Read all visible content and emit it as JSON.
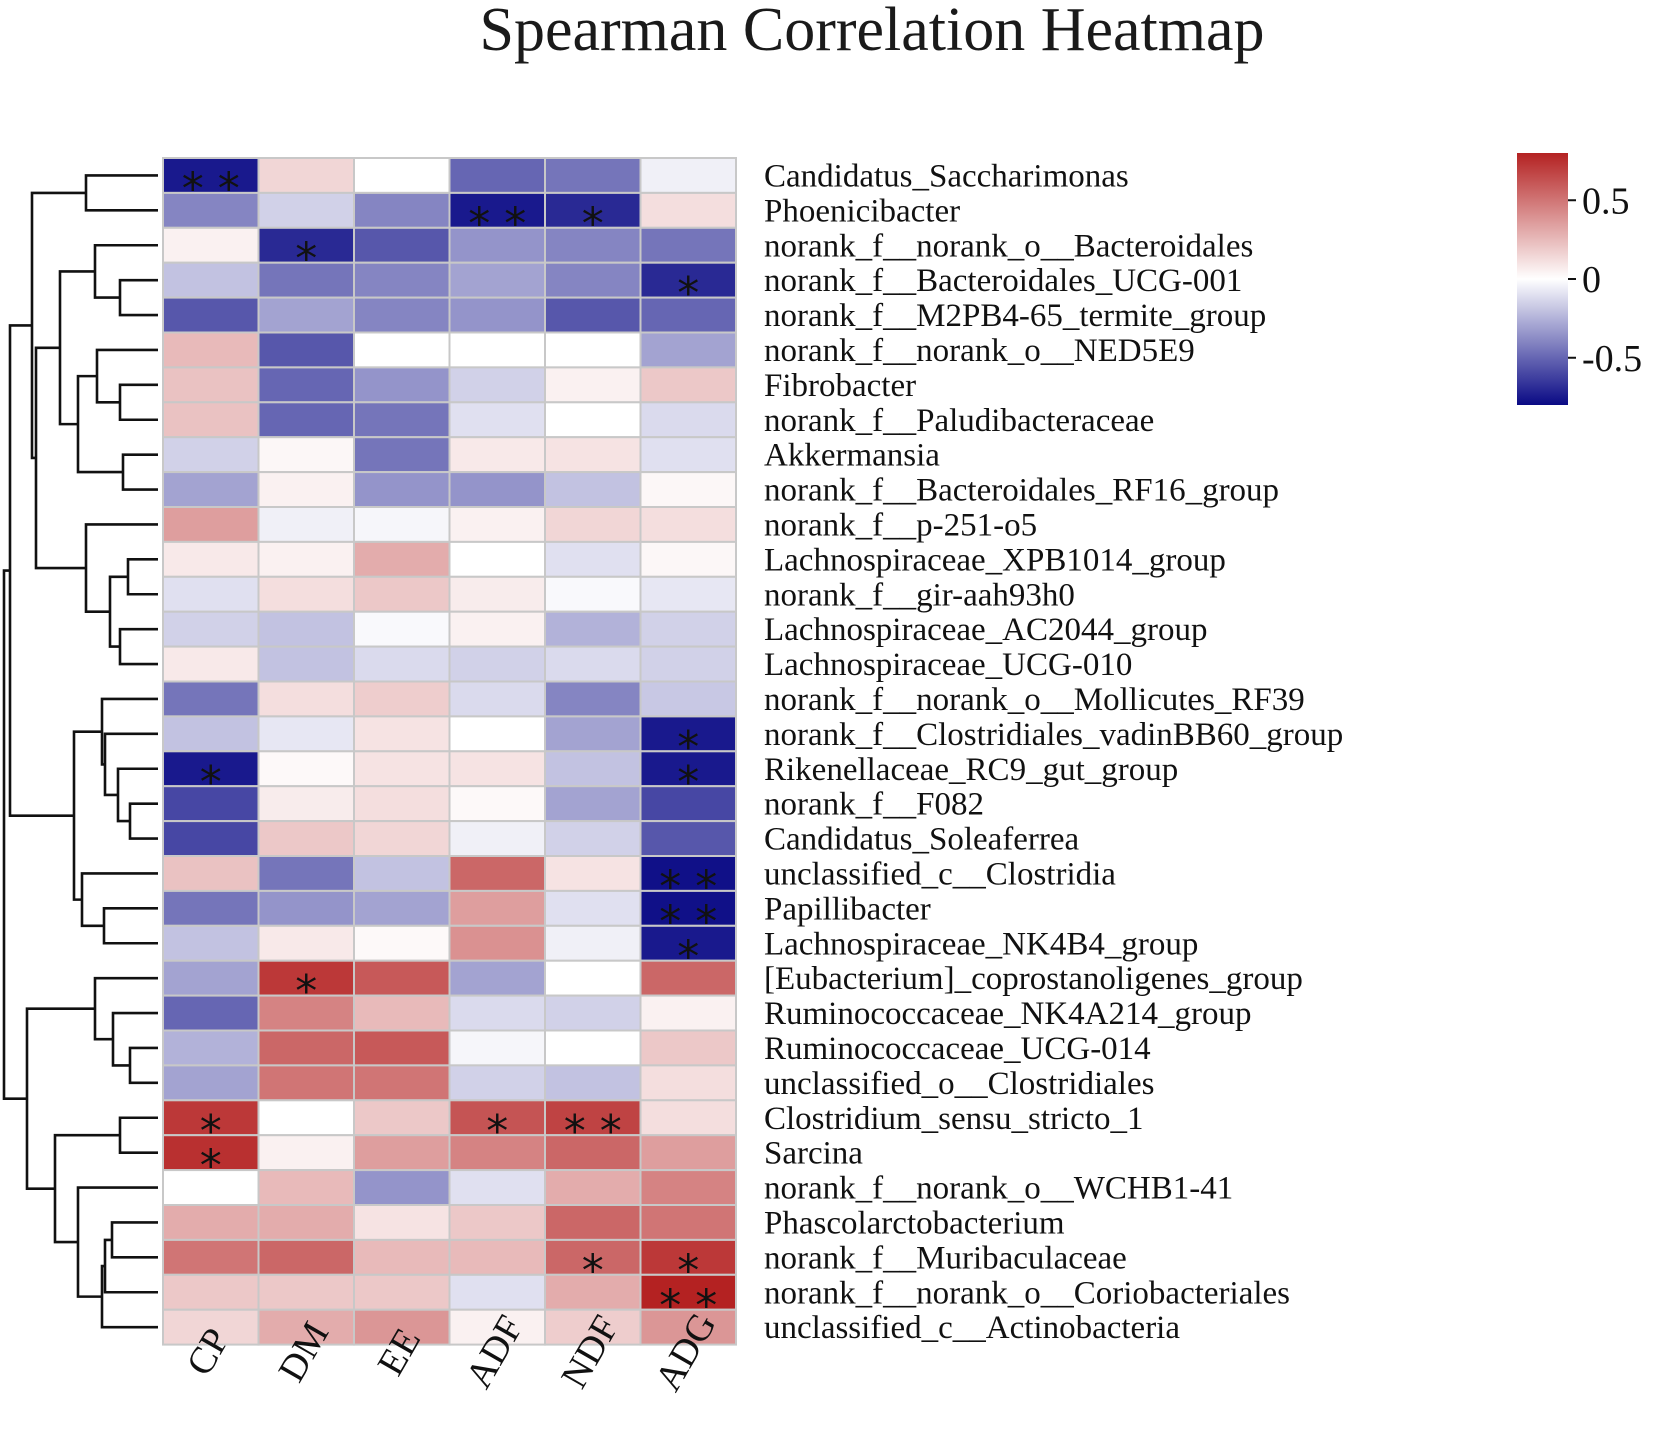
{
  "chart_data": {
    "type": "heatmap",
    "title": "Spearman Correlation Heatmap",
    "columns": [
      "CP",
      "DM",
      "EE",
      "ADF",
      "NDF",
      "ADG"
    ],
    "rows": [
      {
        "label": "Candidatus_Saccharimonas",
        "values": [
          -0.75,
          0.15,
          0.0,
          -0.5,
          -0.45,
          -0.05
        ],
        "stars": [
          "**",
          "",
          "",
          "",
          "",
          ""
        ]
      },
      {
        "label": "Phoenicibacter",
        "values": [
          -0.4,
          -0.15,
          -0.4,
          -0.75,
          -0.7,
          0.12
        ],
        "stars": [
          "",
          "",
          "",
          "**",
          "*",
          ""
        ]
      },
      {
        "label": "norank_f__norank_o__Bacteroidales",
        "values": [
          0.05,
          -0.7,
          -0.55,
          -0.35,
          -0.4,
          -0.45
        ],
        "stars": [
          "",
          "*",
          "",
          "",
          "",
          ""
        ]
      },
      {
        "label": "norank_f__Bacteroidales_UCG-001",
        "values": [
          -0.2,
          -0.45,
          -0.4,
          -0.3,
          -0.4,
          -0.7
        ],
        "stars": [
          "",
          "",
          "",
          "",
          "",
          "*"
        ]
      },
      {
        "label": "norank_f__M2PB4-65_termite_group",
        "values": [
          -0.55,
          -0.3,
          -0.4,
          -0.35,
          -0.55,
          -0.5
        ],
        "stars": [
          "",
          "",
          "",
          "",
          "",
          ""
        ]
      },
      {
        "label": "norank_f__norank_o__NED5E9",
        "values": [
          0.25,
          -0.55,
          0.0,
          0.0,
          0.0,
          -0.3
        ],
        "stars": [
          "",
          "",
          "",
          "",
          "",
          ""
        ]
      },
      {
        "label": "Fibrobacter",
        "values": [
          0.22,
          -0.5,
          -0.35,
          -0.15,
          0.05,
          0.2
        ],
        "stars": [
          "",
          "",
          "",
          "",
          "",
          ""
        ]
      },
      {
        "label": "norank_f__Paludibacteraceae",
        "values": [
          0.22,
          -0.5,
          -0.45,
          -0.1,
          0.0,
          -0.12
        ],
        "stars": [
          "",
          "",
          "",
          "",
          "",
          ""
        ]
      },
      {
        "label": "Akkermansia",
        "values": [
          -0.15,
          0.03,
          -0.45,
          0.08,
          0.1,
          -0.1
        ],
        "stars": [
          "",
          "",
          "",
          "",
          "",
          ""
        ]
      },
      {
        "label": "norank_f__Bacteroidales_RF16_group",
        "values": [
          -0.3,
          0.05,
          -0.35,
          -0.35,
          -0.2,
          0.03
        ],
        "stars": [
          "",
          "",
          "",
          "",
          "",
          ""
        ]
      },
      {
        "label": "norank_f__p-251-o5",
        "values": [
          0.35,
          -0.05,
          -0.03,
          0.05,
          0.15,
          0.12
        ],
        "stars": [
          "",
          "",
          "",
          "",
          "",
          ""
        ]
      },
      {
        "label": "Lachnospiraceae_XPB1014_group",
        "values": [
          0.08,
          0.05,
          0.3,
          0.0,
          -0.1,
          0.03
        ],
        "stars": [
          "",
          "",
          "",
          "",
          "",
          ""
        ]
      },
      {
        "label": "norank_f__gir-aah93h0",
        "values": [
          -0.1,
          0.12,
          0.2,
          0.07,
          -0.02,
          -0.08
        ],
        "stars": [
          "",
          "",
          "",
          "",
          "",
          ""
        ]
      },
      {
        "label": "Lachnospiraceae_AC2044_group",
        "values": [
          -0.15,
          -0.2,
          -0.02,
          0.05,
          -0.25,
          -0.15
        ],
        "stars": [
          "",
          "",
          "",
          "",
          "",
          ""
        ]
      },
      {
        "label": "Lachnospiraceae_UCG-010",
        "values": [
          0.08,
          -0.2,
          -0.12,
          -0.15,
          -0.12,
          -0.15
        ],
        "stars": [
          "",
          "",
          "",
          "",
          "",
          ""
        ]
      },
      {
        "label": "norank_f__norank_o__Mollicutes_RF39",
        "values": [
          -0.45,
          0.12,
          0.18,
          -0.12,
          -0.4,
          -0.18
        ],
        "stars": [
          "",
          "",
          "",
          "",
          "",
          ""
        ]
      },
      {
        "label": "norank_f__Clostridiales_vadinBB60_group",
        "values": [
          -0.2,
          -0.08,
          0.1,
          0.0,
          -0.3,
          -0.75
        ],
        "stars": [
          "",
          "",
          "",
          "",
          "",
          "*"
        ]
      },
      {
        "label": "Rikenellaceae_RC9_gut_group",
        "values": [
          -0.75,
          0.02,
          0.1,
          0.1,
          -0.2,
          -0.75
        ],
        "stars": [
          "*",
          "",
          "",
          "",
          "",
          "*"
        ]
      },
      {
        "label": "norank_f__F082",
        "values": [
          -0.6,
          0.07,
          0.12,
          0.02,
          -0.3,
          -0.6
        ],
        "stars": [
          "",
          "",
          "",
          "",
          "",
          ""
        ]
      },
      {
        "label": "Candidatus_Soleaferrea",
        "values": [
          -0.6,
          0.2,
          0.15,
          -0.05,
          -0.15,
          -0.55
        ],
        "stars": [
          "",
          "",
          "",
          "",
          "",
          ""
        ]
      },
      {
        "label": "unclassified_c__Clostridia",
        "values": [
          0.22,
          -0.45,
          -0.2,
          0.55,
          0.1,
          -0.78
        ],
        "stars": [
          "",
          "",
          "",
          "",
          "",
          "**"
        ]
      },
      {
        "label": "Papillibacter",
        "values": [
          -0.45,
          -0.35,
          -0.3,
          0.35,
          -0.1,
          -0.78
        ],
        "stars": [
          "",
          "",
          "",
          "",
          "",
          "**"
        ]
      },
      {
        "label": "Lachnospiraceae_NK4B4_group",
        "values": [
          -0.2,
          0.08,
          0.02,
          0.4,
          -0.05,
          -0.75
        ],
        "stars": [
          "",
          "",
          "",
          "",
          "",
          "*"
        ]
      },
      {
        "label": "[Eubacterium]_coprostanoligenes_group",
        "values": [
          -0.3,
          0.72,
          0.6,
          -0.3,
          0.0,
          0.55
        ],
        "stars": [
          "",
          "*",
          "",
          "",
          "",
          ""
        ]
      },
      {
        "label": "Ruminococcaceae_NK4A214_group",
        "values": [
          -0.5,
          0.45,
          0.25,
          -0.12,
          -0.15,
          0.05
        ],
        "stars": [
          "",
          "",
          "",
          "",
          "",
          ""
        ]
      },
      {
        "label": "Ruminococcaceae_UCG-014",
        "values": [
          -0.25,
          0.55,
          0.6,
          -0.03,
          0.0,
          0.2
        ],
        "stars": [
          "",
          "",
          "",
          "",
          "",
          ""
        ]
      },
      {
        "label": "unclassified_o__Clostridiales",
        "values": [
          -0.3,
          0.5,
          0.5,
          -0.15,
          -0.2,
          0.12
        ],
        "stars": [
          "",
          "",
          "",
          "",
          "",
          ""
        ]
      },
      {
        "label": "Clostridium_sensu_stricto_1",
        "values": [
          0.72,
          0.0,
          0.2,
          0.62,
          0.68,
          0.12
        ],
        "stars": [
          "*",
          "",
          "",
          "*",
          "**",
          ""
        ]
      },
      {
        "label": "Sarcina",
        "values": [
          0.75,
          0.05,
          0.35,
          0.45,
          0.55,
          0.35
        ],
        "stars": [
          "*",
          "",
          "",
          "",
          "",
          ""
        ]
      },
      {
        "label": "norank_f__norank_o__WCHB1-41",
        "values": [
          0.0,
          0.25,
          -0.35,
          -0.1,
          0.3,
          0.45
        ],
        "stars": [
          "",
          "",
          "",
          "",
          "",
          ""
        ]
      },
      {
        "label": "Phascolarctobacterium",
        "values": [
          0.3,
          0.3,
          0.1,
          0.2,
          0.55,
          0.5
        ],
        "stars": [
          "",
          "",
          "",
          "",
          "",
          ""
        ]
      },
      {
        "label": "norank_f__Muribaculaceae",
        "values": [
          0.5,
          0.55,
          0.25,
          0.25,
          0.55,
          0.72
        ],
        "stars": [
          "",
          "",
          "",
          "",
          "*",
          "*"
        ]
      },
      {
        "label": "norank_f__norank_o__Coriobacteriales",
        "values": [
          0.2,
          0.2,
          0.2,
          -0.1,
          0.3,
          0.8
        ],
        "stars": [
          "",
          "",
          "",
          "",
          "",
          "**"
        ]
      },
      {
        "label": "unclassified_c__Actinobacteria",
        "values": [
          0.15,
          0.3,
          0.38,
          0.05,
          0.18,
          0.38
        ],
        "stars": [
          "",
          "",
          "",
          "",
          "",
          ""
        ]
      }
    ],
    "colorscale": {
      "low": "#0a0a85",
      "mid": "#ffffff",
      "high": "#b42222",
      "range": [
        -0.8,
        0.8
      ]
    },
    "legend": {
      "ticks": [
        0.5,
        0,
        -0.5
      ],
      "tick_labels": [
        "0.5",
        "0",
        "-0.5"
      ],
      "placement": "top-right"
    },
    "dendrogram": "rows-left"
  }
}
